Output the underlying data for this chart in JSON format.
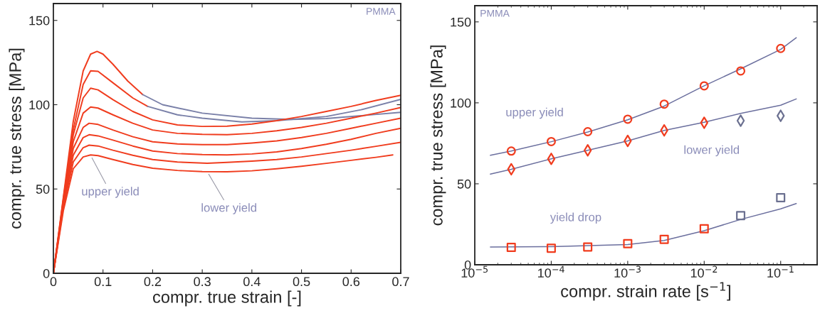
{
  "chart_data": [
    {
      "type": "line",
      "xlabel": "compr. true strain [-]",
      "ylabel": "compr. true stress [MPa]",
      "xlim": [
        0,
        0.7
      ],
      "ylim": [
        0,
        160
      ],
      "xticks": [
        0,
        0.1,
        0.2,
        0.3,
        0.4,
        0.5,
        0.6,
        0.7
      ],
      "yticks": [
        0,
        50,
        100,
        150
      ],
      "grid": false,
      "legend": false,
      "line_style": "solid",
      "annotations": [
        "PMMA",
        {
          "text": "upper yield",
          "x": 0.075,
          "y": 70
        },
        {
          "text": "lower yield",
          "x": 0.31,
          "y": 60.3
        }
      ],
      "series": [
        {
          "color": "#f03c1e",
          "x": [
            0,
            0.02,
            0.04,
            0.06,
            0.075,
            0.088,
            0.1,
            0.12,
            0.15,
            0.18
          ],
          "values": [
            0,
            45,
            90,
            120,
            130,
            131.6,
            130,
            124,
            114,
            106
          ]
        },
        {
          "color": "#7a80a8",
          "x": [
            0.18,
            0.22,
            0.3,
            0.4,
            0.48,
            0.55,
            0.62,
            0.7
          ],
          "values": [
            106,
            100,
            95,
            92,
            91.3,
            91.8,
            93.5,
            95.5
          ]
        },
        {
          "color": "#f03c1e",
          "x": [
            0,
            0.02,
            0.04,
            0.06,
            0.075,
            0.09,
            0.12,
            0.16,
            0.19
          ],
          "values": [
            0,
            44,
            85,
            112,
            120.1,
            119.8,
            113,
            104,
            99
          ]
        },
        {
          "color": "#7a80a8",
          "x": [
            0.19,
            0.25,
            0.3,
            0.38,
            0.45,
            0.55,
            0.62,
            0.7
          ],
          "values": [
            99,
            94,
            92,
            89.8,
            90.5,
            93,
            97,
            103.2
          ]
        },
        {
          "color": "#f03c1e",
          "x": [
            0,
            0.02,
            0.04,
            0.06,
            0.075,
            0.09,
            0.12,
            0.16,
            0.2,
            0.25,
            0.3,
            0.35,
            0.4,
            0.45,
            0.5,
            0.55,
            0.6,
            0.65,
            0.7
          ],
          "values": [
            0,
            43,
            82,
            104,
            109.8,
            108.8,
            103,
            96,
            91,
            88,
            87.1,
            87.3,
            88.5,
            90.5,
            93,
            96,
            99,
            102.5,
            105.6
          ]
        },
        {
          "color": "#f03c1e",
          "x": [
            0,
            0.02,
            0.04,
            0.06,
            0.075,
            0.09,
            0.12,
            0.16,
            0.2,
            0.25,
            0.3,
            0.35,
            0.4,
            0.45,
            0.5,
            0.55,
            0.6,
            0.65,
            0.7
          ],
          "values": [
            0,
            42,
            78,
            95,
            98.6,
            98,
            94,
            89,
            85,
            83,
            82.4,
            82.2,
            83,
            84.5,
            86.5,
            89,
            92,
            95,
            98.3
          ]
        },
        {
          "color": "#f03c1e",
          "x": [
            0,
            0.02,
            0.04,
            0.06,
            0.072,
            0.09,
            0.12,
            0.16,
            0.2,
            0.25,
            0.3,
            0.35,
            0.4,
            0.45,
            0.5,
            0.55,
            0.6,
            0.65,
            0.7
          ],
          "values": [
            0,
            41,
            74,
            86.5,
            89,
            88.3,
            85,
            81,
            78,
            76.7,
            76.3,
            76.3,
            77.3,
            78.5,
            80.5,
            83,
            86,
            89,
            92
          ]
        },
        {
          "color": "#f03c1e",
          "x": [
            0,
            0.02,
            0.04,
            0.06,
            0.072,
            0.09,
            0.12,
            0.16,
            0.2,
            0.25,
            0.3,
            0.35,
            0.4,
            0.45,
            0.5,
            0.55,
            0.6,
            0.65,
            0.7
          ],
          "values": [
            0,
            40,
            70,
            80.5,
            82.2,
            81.5,
            79,
            75.5,
            72.5,
            71,
            70.4,
            70.2,
            70.8,
            72,
            74,
            76.5,
            79.5,
            83,
            86
          ]
        },
        {
          "color": "#f03c1e",
          "x": [
            0,
            0.02,
            0.04,
            0.06,
            0.072,
            0.09,
            0.12,
            0.16,
            0.2,
            0.25,
            0.31,
            0.35,
            0.4,
            0.45,
            0.5,
            0.55,
            0.6,
            0.65,
            0.7
          ],
          "values": [
            0,
            39,
            66,
            74.5,
            76,
            75.5,
            73,
            70,
            67.5,
            66,
            65.3,
            65.8,
            66.5,
            67.5,
            69,
            71,
            73,
            75.3,
            77.7
          ]
        },
        {
          "color": "#f03c1e",
          "x": [
            0,
            0.02,
            0.04,
            0.06,
            0.075,
            0.09,
            0.12,
            0.16,
            0.2,
            0.25,
            0.3,
            0.35,
            0.4,
            0.45,
            0.5,
            0.55,
            0.6,
            0.65,
            0.684
          ],
          "values": [
            0,
            37,
            62,
            69,
            70.2,
            69.8,
            67.5,
            64.5,
            62.3,
            61,
            60.3,
            60.2,
            60.8,
            62,
            63.5,
            65.2,
            67,
            68.8,
            70.2
          ]
        }
      ]
    },
    {
      "type": "scatter",
      "xlabel": "compr. strain rate [s$^{−1}$]",
      "ylabel": "compr. true stress [MPa]",
      "log": "x",
      "xlim": [
        1e-05,
        0.3
      ],
      "ylim": [
        0,
        160
      ],
      "xticks": [
        {
          "value": 1e-05,
          "label": "10$^{−5}$"
        },
        {
          "value": 0.0001,
          "label": "10$^{−4}$"
        },
        {
          "value": 0.001,
          "label": "10$^{−3}$"
        },
        {
          "value": 0.01,
          "label": "10$^{−2}$"
        },
        {
          "value": 0.1,
          "label": "10$^{−1}$"
        }
      ],
      "yticks": [
        0,
        50,
        100,
        150
      ],
      "grid": false,
      "legend": false,
      "annotations": [
        "PMMA",
        "upper yield",
        "lower yield",
        "yield drop"
      ],
      "series": [
        {
          "type": "scatter",
          "marker": "circle",
          "x": [
            3e-05,
            0.0001,
            0.0003,
            0.001,
            0.003,
            0.01,
            0.03,
            0.1
          ],
          "values": [
            70.2,
            76.1,
            82.2,
            89.9,
            99.2,
            110.5,
            119.7,
            133.6
          ],
          "colors": [
            "#f03c1e",
            "#f03c1e",
            "#f03c1e",
            "#f03c1e",
            "#f03c1e",
            "#f03c1e",
            "#f03c1e",
            "#f03c1e"
          ]
        },
        {
          "type": "scatter",
          "marker": "diamond",
          "x": [
            3e-05,
            0.0001,
            0.0003,
            0.001,
            0.003,
            0.01,
            0.03,
            0.1
          ],
          "values": [
            59.0,
            65.4,
            70.7,
            76.5,
            83.0,
            87.7,
            89.0,
            92.0
          ],
          "colors": [
            "#f03c1e",
            "#f03c1e",
            "#f03c1e",
            "#f03c1e",
            "#f03c1e",
            "#f03c1e",
            "#6b7090",
            "#6b7090"
          ]
        },
        {
          "type": "scatter",
          "marker": "square",
          "x": [
            3e-05,
            0.0001,
            0.0003,
            0.001,
            0.003,
            0.01,
            0.03,
            0.1
          ],
          "values": [
            10.7,
            10.2,
            11.0,
            13.0,
            15.7,
            22.2,
            30.4,
            41.4
          ],
          "colors": [
            "#f03c1e",
            "#f03c1e",
            "#f03c1e",
            "#f03c1e",
            "#f03c1e",
            "#f03c1e",
            "#6b7090",
            "#6b7090"
          ]
        },
        {
          "type": "line",
          "color": "#6b6f9e",
          "x": [
            1.6e-05,
            3e-05,
            0.0001,
            0.0003,
            0.001,
            0.003,
            0.01,
            0.03,
            0.1,
            0.16
          ],
          "values": [
            67.6,
            70.2,
            76,
            82,
            89.5,
            98,
            110.5,
            121,
            133,
            140.2
          ]
        },
        {
          "type": "line",
          "color": "#6b6f9e",
          "x": [
            1.6e-05,
            3e-05,
            0.0001,
            0.0003,
            0.001,
            0.003,
            0.01,
            0.03,
            0.1,
            0.16
          ],
          "values": [
            56.0,
            59,
            65.4,
            70.7,
            76.5,
            83,
            88,
            93.5,
            98.5,
            102.4
          ]
        },
        {
          "type": "line",
          "color": "#6b6f9e",
          "x": [
            1.6e-05,
            0.0001,
            0.001,
            0.003,
            0.01,
            0.03,
            0.1,
            0.16
          ],
          "values": [
            11.0,
            11.2,
            12.5,
            15,
            21,
            28,
            34.5,
            37.8
          ]
        }
      ]
    }
  ]
}
